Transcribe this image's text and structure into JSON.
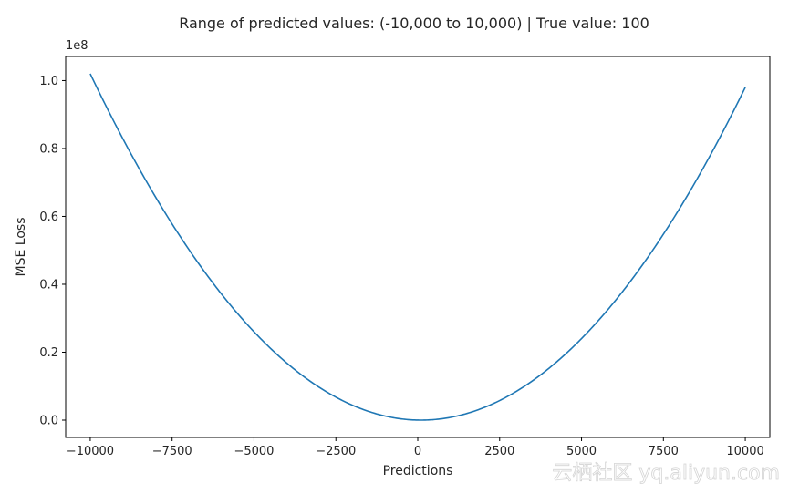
{
  "chart_data": {
    "type": "line",
    "title": "Range of predicted values: (-10,000 to 10,000) | True value: 100",
    "xlabel": "Predictions",
    "ylabel": "MSE Loss",
    "y_offset_text": "1e8",
    "xlim": [
      -10750,
      10750
    ],
    "ylim": [
      -0.051,
      1.071
    ],
    "x_ticks": [
      -10000,
      -7500,
      -5000,
      -2500,
      0,
      2500,
      5000,
      7500,
      10000
    ],
    "x_tick_labels": [
      "−10000",
      "−7500",
      "−5000",
      "−2500",
      "0",
      "2500",
      "5000",
      "7500",
      "10000"
    ],
    "y_ticks": [
      0.0,
      0.2,
      0.4,
      0.6,
      0.8,
      1.0
    ],
    "y_tick_labels": [
      "0.0",
      "0.2",
      "0.4",
      "0.6",
      "0.8",
      "1.0"
    ],
    "grid": false,
    "series": [
      {
        "color": "#1f77b4",
        "x": [
          -10000,
          -9000,
          -8000,
          -7000,
          -6000,
          -5000,
          -4000,
          -3000,
          -2000,
          -1000,
          0,
          100,
          1000,
          2000,
          3000,
          4000,
          5000,
          6000,
          7000,
          8000,
          9000,
          10000
        ],
        "y": [
          1.0201,
          0.8281,
          0.6561,
          0.5041,
          0.3721,
          0.2601,
          0.1681,
          0.0961,
          0.0441,
          0.0121,
          0.0001,
          0.0,
          0.0081,
          0.0361,
          0.0841,
          0.1521,
          0.2401,
          0.3481,
          0.4761,
          0.6241,
          0.7921,
          0.9801
        ]
      }
    ]
  },
  "watermark": "云栖社区 yq.aliyun.com"
}
